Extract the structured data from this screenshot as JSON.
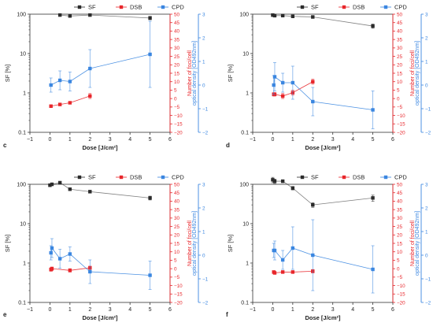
{
  "colors": {
    "sf": "#2b2b2b",
    "dsb": "#e8262b",
    "cpd": "#3a86e0",
    "frame": "#333333"
  },
  "chart_data": [
    {
      "type": "scatter",
      "panel_label": "c",
      "xlabel": "Dose [J/cm²]",
      "ylabel_left": "SF [%]",
      "ylabel_right1": "Number of foci/cell",
      "ylabel_right2": "optical density [OD492nm]",
      "xlim": [
        -1,
        6
      ],
      "xticks": [
        "−1",
        "0",
        "1",
        "2",
        "3",
        "4",
        "5",
        "6"
      ],
      "ylim_left": [
        0.1,
        100
      ],
      "yscale_left": "log",
      "yticks_left": [
        "0.1",
        "1",
        "10",
        "100"
      ],
      "ylim_right1": [
        -20,
        50
      ],
      "yticks_right1": [
        "−20",
        "−15",
        "−10",
        "−5",
        "0",
        "5",
        "10",
        "15",
        "20",
        "25",
        "30",
        "35",
        "40",
        "45",
        "50"
      ],
      "ylim_right2": [
        -2,
        3
      ],
      "yticks_right2": [
        "−2",
        "−1",
        "0",
        "1",
        "2",
        "3"
      ],
      "legend": [
        "SF",
        "DSB",
        "CPD"
      ],
      "legend_position": "top",
      "series": [
        {
          "name": "SF",
          "axis": "left",
          "x": [
            0.5,
            1,
            2,
            5
          ],
          "y": [
            95,
            90,
            95,
            80
          ],
          "err": [
            4,
            4,
            4,
            8
          ]
        },
        {
          "name": "DSB",
          "axis": "right1",
          "x": [
            0.05,
            0.5,
            1,
            2
          ],
          "y": [
            -4.5,
            -3.5,
            -2.5,
            1.5
          ],
          "err": [
            0.7,
            0.7,
            0.7,
            1.5
          ]
        },
        {
          "name": "CPD",
          "axis": "right2",
          "x": [
            0.05,
            0.5,
            1,
            2,
            5
          ],
          "y": [
            0,
            0.2,
            0.15,
            0.7,
            1.3
          ],
          "err": [
            0.3,
            0.4,
            0.4,
            0.8,
            1.4
          ]
        }
      ]
    },
    {
      "type": "scatter",
      "panel_label": "d",
      "xlabel": "Dose [J/cm²]",
      "ylabel_left": "SF [%]",
      "ylabel_right1": "Number of foci/cell",
      "ylabel_right2": "optical density [OD492nm]",
      "xlim": [
        -1,
        6
      ],
      "xticks": [
        "−1",
        "0",
        "1",
        "2",
        "3",
        "4",
        "5",
        "6"
      ],
      "ylim_left": [
        0.1,
        100
      ],
      "yscale_left": "log",
      "yticks_left": [
        "0.1",
        "1",
        "10",
        "100"
      ],
      "ylim_right1": [
        -20,
        50
      ],
      "yticks_right1": [
        "−20",
        "−15",
        "−10",
        "−5",
        "0",
        "5",
        "10",
        "15",
        "20",
        "25",
        "30",
        "35",
        "40",
        "45",
        "50"
      ],
      "ylim_right2": [
        -2,
        3
      ],
      "yticks_right2": [
        "−2",
        "−1",
        "0",
        "1",
        "2",
        "3"
      ],
      "legend": [
        "SF",
        "DSB",
        "CPD"
      ],
      "legend_position": "top",
      "series": [
        {
          "name": "SF",
          "axis": "left",
          "x": [
            0,
            0.1,
            0.5,
            1,
            2,
            5
          ],
          "y": [
            95,
            92,
            92,
            88,
            85,
            50
          ],
          "err": [
            8,
            8,
            6,
            6,
            6,
            6
          ]
        },
        {
          "name": "DSB",
          "axis": "right1",
          "x": [
            0.05,
            0.1,
            0.5,
            1,
            2
          ],
          "y": [
            2.5,
            2.5,
            1.5,
            3.5,
            10
          ],
          "err": [
            1,
            1,
            1.5,
            1.5,
            1.5
          ]
        },
        {
          "name": "CPD",
          "axis": "right2",
          "x": [
            0.05,
            0.1,
            0.5,
            1,
            2,
            5
          ],
          "y": [
            0,
            0.35,
            0.1,
            0.1,
            -0.7,
            -1.05
          ],
          "err": [
            0.4,
            0.6,
            0.4,
            0.7,
            0.6,
            0.8
          ]
        }
      ]
    },
    {
      "type": "scatter",
      "panel_label": "e",
      "xlabel": "Dose [J/cm²]",
      "ylabel_left": "SF [%]",
      "ylabel_right1": "Number of foci/cell",
      "ylabel_right2": "optical density [OD492nm]",
      "xlim": [
        -1,
        6
      ],
      "xticks": [
        "−1",
        "0",
        "1",
        "2",
        "3",
        "4",
        "5",
        "6"
      ],
      "ylim_left": [
        0.1,
        100
      ],
      "yscale_left": "log",
      "yticks_left": [
        "0.1",
        "1",
        "10",
        "100"
      ],
      "ylim_right1": [
        -20,
        50
      ],
      "yticks_right1": [
        "−20",
        "−15",
        "−10",
        "−5",
        "0",
        "5",
        "10",
        "15",
        "20",
        "25",
        "30",
        "35",
        "40",
        "45",
        "50"
      ],
      "ylim_right2": [
        -2,
        3
      ],
      "yticks_right2": [
        "−2",
        "−1",
        "0",
        "1",
        "2",
        "3"
      ],
      "legend": [
        "SF",
        "DSB",
        "CPD"
      ],
      "legend_position": "top",
      "series": [
        {
          "name": "SF",
          "axis": "left",
          "x": [
            0,
            0.1,
            0.5,
            1,
            2,
            5
          ],
          "y": [
            95,
            100,
            110,
            75,
            65,
            45
          ],
          "err": [
            8,
            8,
            8,
            5,
            5,
            5
          ]
        },
        {
          "name": "DSB",
          "axis": "right1",
          "x": [
            0.05,
            0.1,
            1,
            2
          ],
          "y": [
            -0.5,
            0,
            -1,
            0.5
          ],
          "err": [
            1,
            1,
            1,
            1
          ]
        },
        {
          "name": "CPD",
          "axis": "right2",
          "x": [
            0.05,
            0.1,
            0.5,
            1,
            2,
            5
          ],
          "y": [
            0.1,
            0.3,
            -0.15,
            0.05,
            -0.7,
            -0.85
          ],
          "err": [
            0.3,
            0.4,
            0.4,
            0.3,
            0.5,
            0.6
          ]
        }
      ]
    },
    {
      "type": "scatter",
      "panel_label": "f",
      "xlabel": "Dose [J/cm²]",
      "ylabel_left": "SF [%]",
      "ylabel_right1": "Number of foci/cell",
      "ylabel_right2": "optical density [OD492nm]",
      "xlim": [
        -1,
        6
      ],
      "xticks": [
        "−1",
        "0",
        "1",
        "2",
        "3",
        "4",
        "5",
        "6"
      ],
      "ylim_left": [
        0.1,
        100
      ],
      "yscale_left": "log",
      "yticks_left": [
        "0.1",
        "1",
        "10",
        "100"
      ],
      "ylim_right1": [
        -20,
        50
      ],
      "yticks_right1": [
        "−20",
        "−15",
        "−10",
        "−5",
        "0",
        "5",
        "10",
        "15",
        "20",
        "25",
        "30",
        "35",
        "40",
        "45",
        "50"
      ],
      "ylim_right2": [
        -2,
        3
      ],
      "yticks_right2": [
        "−2",
        "−1",
        "0",
        "1",
        "2",
        "3"
      ],
      "legend": [
        "SF",
        "DSB",
        "CPD"
      ],
      "legend_position": "top",
      "series": [
        {
          "name": "SF",
          "axis": "left",
          "x": [
            0,
            0.1,
            0.5,
            1,
            2,
            5
          ],
          "y": [
            130,
            120,
            120,
            80,
            30,
            45
          ],
          "err": [
            20,
            15,
            10,
            8,
            4,
            8
          ]
        },
        {
          "name": "DSB",
          "axis": "right1",
          "x": [
            0.05,
            0.1,
            0.5,
            1,
            2
          ],
          "y": [
            -2,
            -2.5,
            -2,
            -2,
            -1.5
          ],
          "err": [
            0.8,
            0.8,
            0.8,
            0.8,
            1
          ]
        },
        {
          "name": "CPD",
          "axis": "right2",
          "x": [
            0.05,
            0.1,
            0.5,
            1,
            2,
            5
          ],
          "y": [
            0.2,
            0.2,
            -0.2,
            0.3,
            0,
            -0.6
          ],
          "err": [
            0.3,
            0.4,
            0.4,
            0.9,
            1.5,
            1.0
          ]
        }
      ]
    }
  ]
}
